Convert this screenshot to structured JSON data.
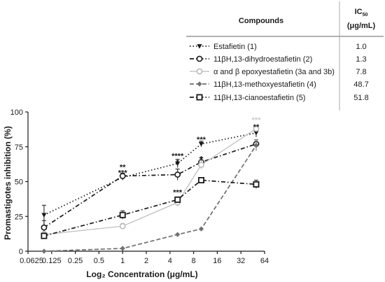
{
  "chart_data": {
    "type": "line",
    "title": "",
    "xlabel": "Log₂ Concentration (μg/mL)",
    "ylabel": "Promastigotes inhibition (%)",
    "x_scale": "log2",
    "xlim": [
      0.0625,
      64
    ],
    "ylim": [
      0,
      100
    ],
    "x_ticks": [
      0.0625,
      0.125,
      0.25,
      0.5,
      1,
      2,
      4,
      8,
      16,
      32,
      64
    ],
    "x_tick_labels": [
      "0.0625",
      "0.125",
      "0.25",
      "0.5",
      "1",
      "2",
      "4",
      "8",
      "16",
      "32",
      "64"
    ],
    "y_ticks": [
      0,
      25,
      50,
      75,
      100
    ],
    "y_tick_labels": [
      "0",
      "25",
      "50",
      "75",
      "100"
    ],
    "x": [
      0.1,
      1,
      5,
      10,
      50
    ],
    "series": [
      {
        "name": "Estafietin (1)",
        "color": "#1a1a1a",
        "dash": "dotted",
        "marker": "triangle-down",
        "values": [
          26,
          53,
          63,
          77,
          85
        ],
        "errors": [
          7,
          2,
          3,
          2,
          3
        ]
      },
      {
        "name": "11βH,13-dihydroestafietin (2)",
        "color": "#1a1a1a",
        "dash": "dashdot",
        "marker": "circle-open",
        "values": [
          17,
          54,
          55,
          64,
          77
        ],
        "errors": [
          5,
          2,
          4,
          3,
          3
        ]
      },
      {
        "name": "α and β epoxyestafietin (3a and 3b)",
        "color": "#bbbbbb",
        "dash": "solid",
        "marker": "circle-open",
        "values": [
          12,
          18,
          35,
          62,
          88
        ],
        "errors": [
          2,
          2,
          3,
          3,
          2
        ]
      },
      {
        "name": "11βH,13-methoxyestafietin (4)",
        "color": "#707070",
        "dash": "dashed",
        "marker": "diamond",
        "values": [
          0,
          2,
          12,
          16,
          76
        ],
        "errors": [
          0,
          0,
          0,
          0,
          4
        ]
      },
      {
        "name": "11βH,13-cianoestafietin (5)",
        "color": "#1a1a1a",
        "dash": "dashdot",
        "marker": "square-open",
        "values": [
          11,
          26,
          37,
          51,
          48
        ],
        "errors": [
          2,
          3,
          2,
          2,
          3
        ]
      }
    ],
    "annotations": [
      {
        "text": "**",
        "x": 1,
        "y": 60,
        "color": "#1a1a1a"
      },
      {
        "text": "***",
        "x": 1,
        "y": 56,
        "color": "#1a1a1a"
      },
      {
        "text": "****",
        "x": 5,
        "y": 68,
        "color": "#1a1a1a"
      },
      {
        "text": "*",
        "x": 5,
        "y": 63.5,
        "color": "#1a1a1a"
      },
      {
        "text": "***",
        "x": 5,
        "y": 42,
        "color": "#1a1a1a"
      },
      {
        "text": "***",
        "x": 10,
        "y": 80,
        "color": "#1a1a1a"
      },
      {
        "text": "*",
        "x": 10,
        "y": 66,
        "color": "#1a1a1a"
      },
      {
        "text": "***",
        "x": 50,
        "y": 94,
        "color": "#cccccc"
      },
      {
        "text": "**",
        "x": 50,
        "y": 89,
        "color": "#1a1a1a"
      }
    ],
    "legend": {
      "placement": "top-right",
      "header_compounds": "Compounds",
      "header_ic50": "IC",
      "header_ic50_sub": "50",
      "header_ic50_unit": "(μg/mL)",
      "ic50": [
        "1.0",
        "1.3",
        "7.8",
        "48.7",
        "51.8"
      ]
    },
    "grid": false
  }
}
